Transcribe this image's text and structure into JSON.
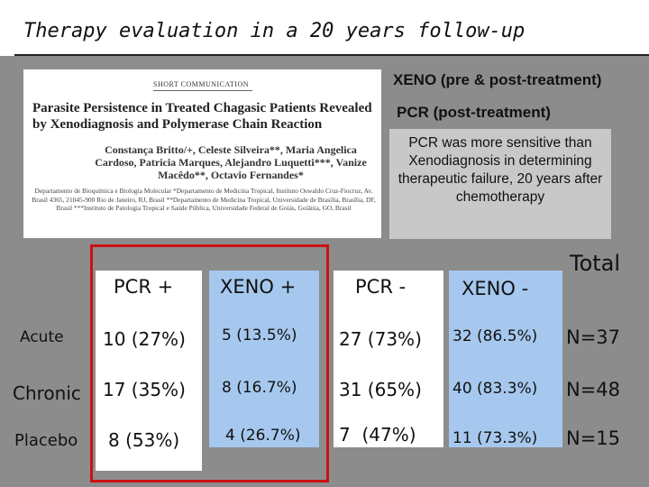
{
  "slide": {
    "title": "Therapy evaluation in a 20 years follow-up"
  },
  "paper": {
    "section_label": "SHORT COMMUNICATION",
    "title": "Parasite Persistence in Treated Chagasic Patients Revealed by Xenodiagnosis and Polymerase Chain Reaction",
    "authors": "Constança Britto/+, Celeste Silveira**, Maria Angelica Cardoso, Patricia Marques, Alejandro Luquetti***, Vanize Macêdo**, Octavio Fernandes*",
    "affiliation": "Departamento de Bioquímica e Biologia Molecular *Departamento de Medicina Tropical, Instituto Oswaldo Cruz-Fiocruz, Av. Brasil 4365, 21045-900 Rio de Janeiro, RJ, Brasil **Departamento de Medicina Tropical, Universidade de Brasília, Brasília, DF, Brasil ***Instituto de Patologia Tropical e Saúde Pública, Universidade Federal de Goiás, Goiânia, GO, Brasil"
  },
  "notes": {
    "xeno_label": "XENO (pre & post-treatment)",
    "pcr_label": "PCR (post-treatment)",
    "conclusion": "PCR was more sensitive than Xenodiagnosis in determining therapeutic failure, 20 years after chemotherapy"
  },
  "table": {
    "headers": [
      "PCR +",
      "XENO +",
      "PCR -",
      "XENO -"
    ],
    "total_header": "Total",
    "rows": [
      {
        "label": "Acute",
        "pcr_pos": "10 (27%)",
        "xeno_pos": "5 (13.5%)",
        "pcr_neg": "27 (73%)",
        "xeno_neg": "32 (86.5%)",
        "total": "N=37"
      },
      {
        "label": "Chronic",
        "pcr_pos": "17 (35%)",
        "xeno_pos": "8 (16.7%)",
        "pcr_neg": "31 (65%)",
        "xeno_neg": "40 (83.3%)",
        "total": "N=48"
      },
      {
        "label": "Placebo",
        "pcr_pos": "8 (53%)",
        "xeno_pos": "4 (26.7%)",
        "pcr_neg": "7  (47%)",
        "xeno_neg": "11 (73.3%)",
        "total": "N=15"
      }
    ]
  },
  "colors": {
    "background": "#8c8c8c",
    "xeno_column": "#a6c8ee",
    "highlight_border": "#cc1111"
  }
}
